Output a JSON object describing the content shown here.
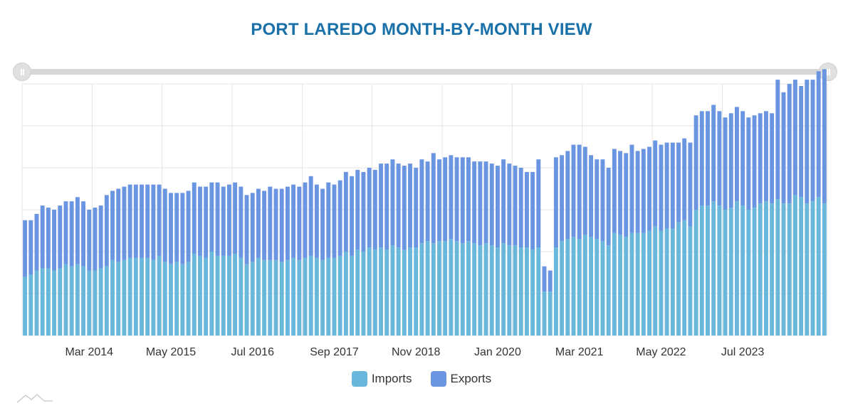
{
  "colors": {
    "title": "#1a70a8",
    "imports": "#6ab7dc",
    "exports": "#6a95e1",
    "grid": "#e4e4e4"
  },
  "chart_data": {
    "type": "bar",
    "stacked": true,
    "title": "PORT LAREDO MONTH-BY-MONTH VIEW",
    "x_tick_labels": [
      "Mar 2014",
      "May 2015",
      "Jul 2016",
      "Sep 2017",
      "Nov 2018",
      "Jan 2020",
      "Mar 2021",
      "May 2022",
      "Jul 2023"
    ],
    "grid": true,
    "legend_position": "bottom-center",
    "series": [
      {
        "name": "Imports",
        "color": "#6ab7dc",
        "values": [
          28,
          29,
          31,
          32,
          32,
          31,
          32,
          34,
          33,
          34,
          33,
          31,
          31,
          32,
          33,
          36,
          35,
          36,
          37,
          37,
          37,
          37,
          36,
          38,
          35,
          34,
          35,
          34,
          35,
          39,
          38,
          37,
          40,
          38,
          38,
          38,
          39,
          37,
          34,
          35,
          37,
          36,
          36,
          36,
          35,
          36,
          37,
          36,
          37,
          38,
          37,
          36,
          37,
          37,
          38,
          40,
          38,
          41,
          40,
          42,
          41,
          42,
          41,
          43,
          42,
          41,
          42,
          42,
          44,
          45,
          44,
          45,
          45,
          46,
          45,
          44,
          45,
          44,
          43,
          44,
          43,
          42,
          44,
          43,
          43,
          42,
          42,
          41,
          42,
          21,
          21,
          42,
          45,
          46,
          47,
          46,
          48,
          47,
          46,
          45,
          43,
          49,
          48,
          47,
          49,
          49,
          49,
          50,
          52,
          50,
          51,
          51,
          54,
          55,
          52,
          60,
          62,
          62,
          64,
          62,
          60,
          61,
          64,
          62,
          60,
          61,
          63,
          64,
          63,
          65,
          63,
          63,
          67,
          66,
          63,
          64,
          66,
          63
        ]
      },
      {
        "name": "Exports",
        "color": "#6a95e1",
        "values": [
          27,
          26,
          27,
          30,
          29,
          29,
          30,
          30,
          31,
          32,
          31,
          29,
          30,
          30,
          34,
          33,
          35,
          35,
          35,
          35,
          35,
          35,
          36,
          34,
          35,
          34,
          33,
          34,
          34,
          34,
          33,
          34,
          33,
          35,
          33,
          34,
          34,
          34,
          33,
          33,
          33,
          33,
          35,
          34,
          35,
          35,
          35,
          35,
          36,
          38,
          35,
          34,
          36,
          35,
          36,
          38,
          38,
          38,
          38,
          38,
          38,
          40,
          41,
          41,
          40,
          40,
          40,
          38,
          40,
          38,
          43,
          39,
          40,
          40,
          40,
          41,
          40,
          39,
          40,
          39,
          39,
          39,
          40,
          39,
          38,
          38,
          36,
          37,
          42,
          12,
          10,
          43,
          41,
          42,
          44,
          45,
          42,
          39,
          38,
          39,
          37,
          40,
          40,
          40,
          42,
          39,
          40,
          40,
          41,
          41,
          41,
          41,
          38,
          39,
          40,
          45,
          45,
          45,
          46,
          45,
          44,
          45,
          45,
          45,
          44,
          44,
          43,
          43,
          43,
          57,
          53,
          57,
          55,
          53,
          59,
          58,
          60,
          64
        ]
      }
    ]
  }
}
